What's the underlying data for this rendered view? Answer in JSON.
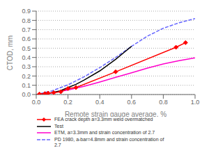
{
  "chart_data": {
    "type": "line",
    "title": "",
    "xlabel": "Remote strain gauge average, %",
    "ylabel": "CTOD, mm",
    "xlim": [
      0,
      1.0
    ],
    "ylim": [
      0,
      0.9
    ],
    "xticks": [
      {
        "value": 0,
        "label": "0.0"
      },
      0.2,
      0.4,
      0.6,
      0.8,
      {
        "value": 1.0,
        "label": "1.0"
      }
    ],
    "yticks": [
      {
        "value": 0,
        "label": "0.0"
      },
      0.1,
      0.2,
      0.3,
      0.4,
      0.5,
      0.6,
      0.7,
      0.8,
      0.9
    ],
    "grid": "y",
    "legend": "bottom",
    "series": [
      {
        "name": "FEA crack depth a=3.3mm weld overmatched",
        "color": "#FF0000",
        "marker": "diamond",
        "line_style": "solid",
        "x": [
          0.02,
          0.055,
          0.075,
          0.11,
          0.155,
          0.2,
          0.25,
          0.5,
          0.88,
          0.94
        ],
        "values": [
          0.005,
          0.01,
          0.015,
          0.02,
          0.03,
          0.065,
          0.075,
          0.245,
          0.51,
          0.56
        ]
      },
      {
        "name": "Test",
        "color": "#000000",
        "line_style": "solid",
        "x": [
          0.0,
          0.05,
          0.1,
          0.15,
          0.2,
          0.25,
          0.3,
          0.4,
          0.5,
          0.55,
          0.6
        ],
        "values": [
          0.0,
          0.008,
          0.02,
          0.04,
          0.075,
          0.11,
          0.155,
          0.255,
          0.38,
          0.45,
          0.52
        ]
      },
      {
        "name": "ETM, a=3.3mm and strain concentration of 2.7",
        "color": "#FF00CC",
        "line_style": "solid",
        "x": [
          0.0,
          0.1,
          0.2,
          0.3,
          0.4,
          0.5,
          0.6,
          0.7,
          0.8,
          0.9,
          1.0
        ],
        "values": [
          0.0,
          0.018,
          0.048,
          0.088,
          0.135,
          0.185,
          0.235,
          0.285,
          0.33,
          0.365,
          0.395
        ]
      },
      {
        "name": "PD 1980, a-bar=4.8mm and strain concentration of\n2.7",
        "color": "#6666FF",
        "line_style": "dashed",
        "x": [
          0.0,
          0.1,
          0.2,
          0.3,
          0.4,
          0.5,
          0.6,
          0.7,
          0.8,
          0.9,
          1.0
        ],
        "values": [
          0.0,
          0.04,
          0.105,
          0.19,
          0.29,
          0.4,
          0.52,
          0.63,
          0.715,
          0.775,
          0.82
        ]
      }
    ]
  }
}
